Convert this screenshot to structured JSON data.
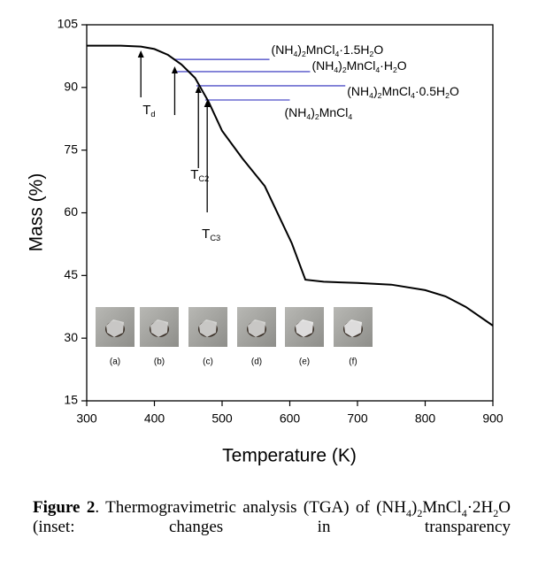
{
  "chart_data": {
    "type": "line",
    "xlabel": "Temperature (K)",
    "ylabel": "Mass (%)",
    "x": [
      300,
      350,
      380,
      400,
      420,
      440,
      460,
      480,
      500,
      530,
      563,
      603,
      623,
      650,
      700,
      750,
      800,
      830,
      860,
      900
    ],
    "series": [
      {
        "color": "#000000",
        "values": [
          100,
          100,
          99.8,
          99.2,
          97.8,
          95.5,
          92.3,
          86.6,
          79.6,
          73,
          66.4,
          52.7,
          44,
          43.5,
          43.2,
          42.8,
          41.5,
          40,
          37.5,
          33
        ]
      }
    ],
    "xlim": [
      300,
      900
    ],
    "ylim": [
      15,
      105
    ],
    "xticks": [
      300,
      400,
      500,
      600,
      700,
      800,
      900
    ],
    "yticks": [
      15,
      30,
      45,
      60,
      75,
      90,
      105
    ],
    "phase_lines": [
      {
        "y": 96.7,
        "x": [
          428,
          570
        ],
        "label": [
          "(NH",
          "4",
          ")",
          "2",
          "MnCl",
          "4",
          "·1.5H",
          "2",
          "O"
        ]
      },
      {
        "y": 93.8,
        "x": [
          428,
          630
        ],
        "label": [
          "(NH",
          "4",
          ")",
          "2",
          "MnCl",
          "4",
          "·H",
          "2",
          "O"
        ]
      },
      {
        "y": 90.4,
        "x": [
          462,
          682
        ],
        "label": [
          "(NH",
          "4",
          ")",
          "2",
          "MnCl",
          "4",
          "·0.5H",
          "2",
          "O"
        ]
      },
      {
        "y": 87.0,
        "x": [
          475,
          600
        ],
        "label": [
          "(NH",
          "4",
          ")",
          "2",
          "MnCl",
          "4"
        ]
      }
    ],
    "arrows": [
      {
        "x": 380,
        "label": [
          "T",
          "d"
        ]
      },
      {
        "x": 430
      },
      {
        "x": 465,
        "label": [
          "T",
          "C2"
        ]
      },
      {
        "x": 478,
        "label": [
          "T",
          "C3"
        ]
      }
    ],
    "inset_labels": [
      "(a)",
      "(b)",
      "(c)",
      "(d)",
      "(e)",
      "(f)"
    ]
  },
  "caption": {
    "label": "Figure 2",
    "text": [
      ". Thermogravimetric analysis (TGA) of (NH",
      "4",
      ")",
      "2",
      "MnCl",
      "4",
      "·2H",
      "2",
      "O (inset: changes in transparency"
    ]
  }
}
